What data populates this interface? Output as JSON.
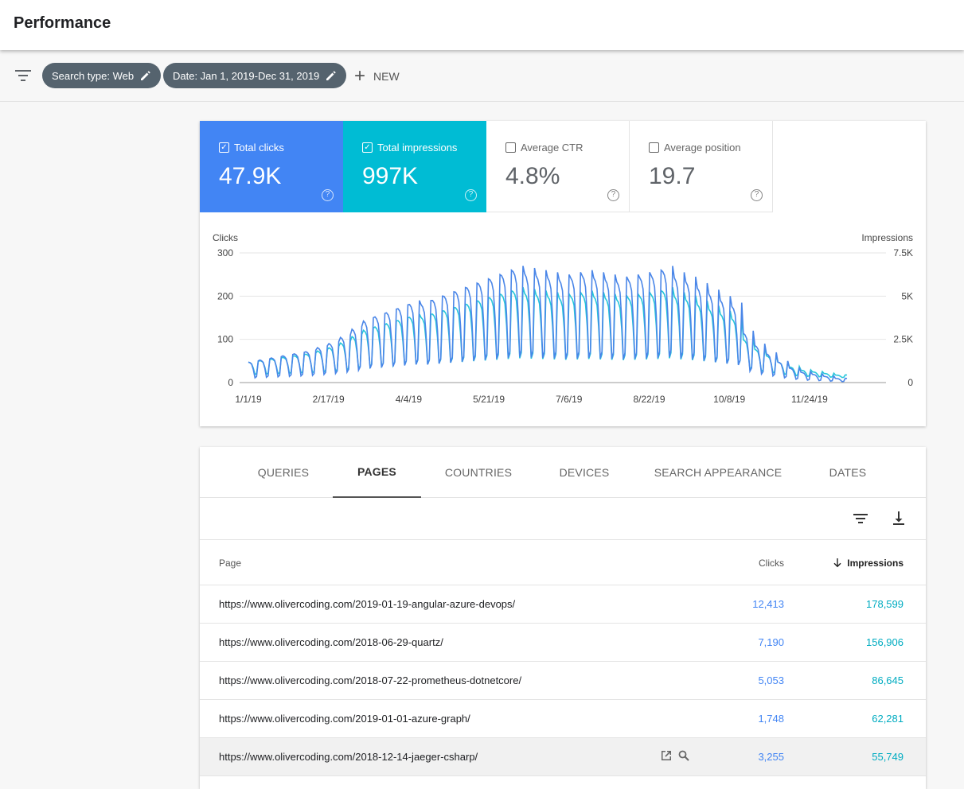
{
  "header": {
    "title": "Performance"
  },
  "filters": {
    "chips": [
      {
        "label": "Search type: Web"
      },
      {
        "label": "Date: Jan 1, 2019-Dec 31, 2019"
      }
    ],
    "new_label": "NEW"
  },
  "metrics": [
    {
      "label": "Total clicks",
      "value": "47.9K",
      "checked": true,
      "color": "#4285f4"
    },
    {
      "label": "Total impressions",
      "value": "997K",
      "checked": true,
      "color": "#00bcd4"
    },
    {
      "label": "Average CTR",
      "value": "4.8%",
      "checked": false
    },
    {
      "label": "Average position",
      "value": "19.7",
      "checked": false
    }
  ],
  "chart_data": {
    "type": "line",
    "y_left_label": "Clicks",
    "y_right_label": "Impressions",
    "y_left_ticks": [
      "300",
      "200",
      "100",
      "0"
    ],
    "y_right_ticks": [
      "7.5K",
      "5K",
      "2.5K",
      "0"
    ],
    "x_ticks": [
      "1/1/19",
      "2/17/19",
      "4/4/19",
      "5/21/19",
      "7/6/19",
      "8/22/19",
      "10/8/19",
      "11/24/19"
    ],
    "ylim_left": [
      0,
      300
    ],
    "ylim_right": [
      0,
      7500
    ],
    "weekly_peaks_clicks": [
      50,
      55,
      60,
      65,
      70,
      75,
      85,
      95,
      110,
      130,
      150,
      160,
      170,
      180,
      190,
      190,
      200,
      210,
      220,
      230,
      240,
      250,
      260,
      270,
      265,
      260,
      255,
      250,
      255,
      260,
      255,
      250,
      245,
      250,
      255,
      260,
      270,
      255,
      245,
      230,
      215,
      200,
      185,
      120,
      90,
      70,
      50,
      35,
      25,
      20,
      15,
      10
    ],
    "series": [
      {
        "name": "Clicks",
        "color": "#4a86e8"
      },
      {
        "name": "Impressions",
        "color": "#26c6da"
      }
    ]
  },
  "tabs": [
    {
      "label": "QUERIES"
    },
    {
      "label": "PAGES",
      "active": true
    },
    {
      "label": "COUNTRIES"
    },
    {
      "label": "DEVICES"
    },
    {
      "label": "SEARCH APPEARANCE"
    },
    {
      "label": "DATES"
    }
  ],
  "table": {
    "columns": {
      "page": "Page",
      "clicks": "Clicks",
      "impressions": "Impressions"
    },
    "rows": [
      {
        "url": "https://www.olivercoding.com/2019-01-19-angular-azure-devops/",
        "clicks": "12,413",
        "impressions": "178,599"
      },
      {
        "url": "https://www.olivercoding.com/2018-06-29-quartz/",
        "clicks": "7,190",
        "impressions": "156,906"
      },
      {
        "url": "https://www.olivercoding.com/2018-07-22-prometheus-dotnetcore/",
        "clicks": "5,053",
        "impressions": "86,645"
      },
      {
        "url": "https://www.olivercoding.com/2019-01-01-azure-graph/",
        "clicks": "1,748",
        "impressions": "62,281"
      },
      {
        "url": "https://www.olivercoding.com/2018-12-14-jaeger-csharp/",
        "clicks": "3,255",
        "impressions": "55,749"
      }
    ]
  }
}
